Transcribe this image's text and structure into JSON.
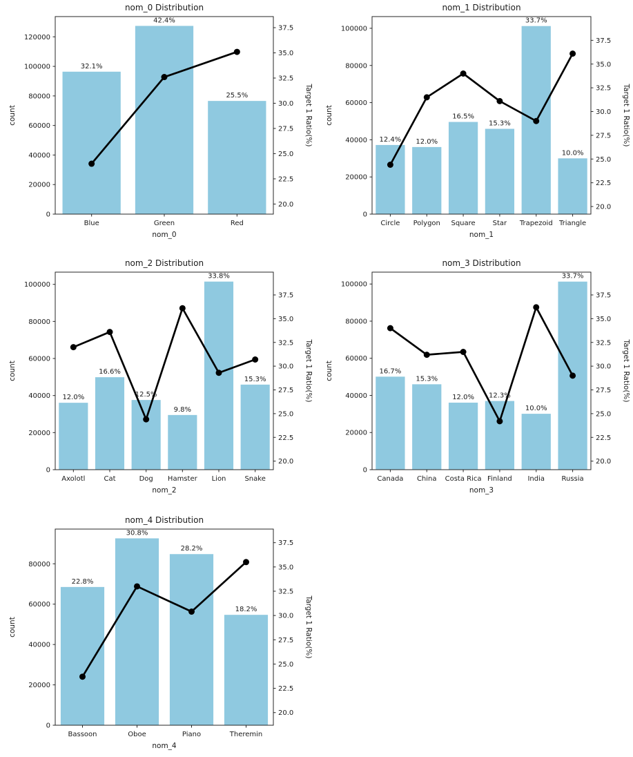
{
  "figure": {
    "background": "#ffffff",
    "bar_color": "#8fc9e0",
    "line_color": "#000000",
    "text_color": "#1a1a1a",
    "spine_color": "#262626"
  },
  "chart_data": [
    {
      "type": "bar+line",
      "title": "nom_0 Distribution",
      "xlabel": "nom_0",
      "ylabel_left": "count",
      "ylabel_right": "Target 1 Ratio(%)",
      "categories": [
        "Blue",
        "Green",
        "Red"
      ],
      "series": [
        {
          "name": "count",
          "type": "bar",
          "axis": "left",
          "values": [
            96400,
            127400,
            76600
          ],
          "labels": [
            "32.1%",
            "42.4%",
            "25.5%"
          ]
        },
        {
          "name": "Target 1 Ratio(%)",
          "type": "line",
          "axis": "right",
          "values": [
            24.0,
            32.6,
            35.1
          ]
        }
      ],
      "ylim_left": [
        0,
        133700
      ],
      "yticks_left": [
        0,
        20000,
        40000,
        60000,
        80000,
        100000,
        120000
      ],
      "ylim_right": [
        19.0,
        38.6
      ],
      "yticks_right": [
        20.0,
        22.5,
        25.0,
        27.5,
        30.0,
        32.5,
        35.0,
        37.5
      ],
      "grid": false,
      "legend": null
    },
    {
      "type": "bar+line",
      "title": "nom_1 Distribution",
      "xlabel": "nom_1",
      "ylabel_left": "count",
      "ylabel_right": "Target 1 Ratio(%)",
      "categories": [
        "Circle",
        "Polygon",
        "Square",
        "Star",
        "Trapezoid",
        "Triangle"
      ],
      "series": [
        {
          "name": "count",
          "type": "bar",
          "axis": "left",
          "values": [
            37200,
            36100,
            49600,
            45900,
            101200,
            30000
          ],
          "labels": [
            "12.4%",
            "12.0%",
            "16.5%",
            "15.3%",
            "33.7%",
            "10.0%"
          ]
        },
        {
          "name": "Target 1 Ratio(%)",
          "type": "line",
          "axis": "right",
          "values": [
            24.4,
            31.5,
            34.0,
            31.1,
            29.0,
            36.1
          ]
        }
      ],
      "ylim_left": [
        0,
        106300
      ],
      "yticks_left": [
        0,
        20000,
        40000,
        60000,
        80000,
        100000
      ],
      "ylim_right": [
        19.2,
        40.0
      ],
      "yticks_right": [
        20.0,
        22.5,
        25.0,
        27.5,
        30.0,
        32.5,
        35.0,
        37.5
      ],
      "grid": false,
      "legend": null
    },
    {
      "type": "bar+line",
      "title": "nom_2 Distribution",
      "xlabel": "nom_2",
      "ylabel_left": "count",
      "ylabel_right": "Target 1 Ratio(%)",
      "categories": [
        "Axolotl",
        "Cat",
        "Dog",
        "Hamster",
        "Lion",
        "Snake"
      ],
      "series": [
        {
          "name": "count",
          "type": "bar",
          "axis": "left",
          "values": [
            36100,
            49900,
            37600,
            29500,
            101500,
            45900
          ],
          "labels": [
            "12.0%",
            "16.6%",
            "12.5%",
            "9.8%",
            "33.8%",
            "15.3%"
          ]
        },
        {
          "name": "Target 1 Ratio(%)",
          "type": "line",
          "axis": "right",
          "values": [
            32.0,
            33.6,
            24.4,
            36.1,
            29.3,
            30.7
          ]
        }
      ],
      "ylim_left": [
        0,
        106600
      ],
      "yticks_left": [
        0,
        20000,
        40000,
        60000,
        80000,
        100000
      ],
      "ylim_right": [
        19.1,
        39.9
      ],
      "yticks_right": [
        20.0,
        22.5,
        25.0,
        27.5,
        30.0,
        32.5,
        35.0,
        37.5
      ],
      "grid": false,
      "legend": null
    },
    {
      "type": "bar+line",
      "title": "nom_3 Distribution",
      "xlabel": "nom_3",
      "ylabel_left": "count",
      "ylabel_right": "Target 1 Ratio(%)",
      "categories": [
        "Canada",
        "China",
        "Costa Rica",
        "Finland",
        "India",
        "Russia"
      ],
      "series": [
        {
          "name": "count",
          "type": "bar",
          "axis": "left",
          "values": [
            50100,
            46000,
            36100,
            37000,
            30100,
            101300
          ],
          "labels": [
            "16.7%",
            "15.3%",
            "12.0%",
            "12.3%",
            "10.0%",
            "33.7%"
          ]
        },
        {
          "name": "Target 1 Ratio(%)",
          "type": "line",
          "axis": "right",
          "values": [
            34.0,
            31.2,
            31.5,
            24.2,
            36.2,
            29.0
          ]
        }
      ],
      "ylim_left": [
        0,
        106400
      ],
      "yticks_left": [
        0,
        20000,
        40000,
        60000,
        80000,
        100000
      ],
      "ylim_right": [
        19.1,
        39.9
      ],
      "yticks_right": [
        20.0,
        22.5,
        25.0,
        27.5,
        30.0,
        32.5,
        35.0,
        37.5
      ],
      "grid": false,
      "legend": null
    },
    {
      "type": "bar+line",
      "title": "nom_4 Distribution",
      "xlabel": "nom_4",
      "ylabel_left": "count",
      "ylabel_right": "Target 1 Ratio(%)",
      "categories": [
        "Bassoon",
        "Oboe",
        "Piano",
        "Theremin"
      ],
      "series": [
        {
          "name": "count",
          "type": "bar",
          "axis": "left",
          "values": [
            68500,
            92600,
            84800,
            54700
          ],
          "labels": [
            "22.8%",
            "30.8%",
            "28.2%",
            "18.2%"
          ]
        },
        {
          "name": "Target 1 Ratio(%)",
          "type": "line",
          "axis": "right",
          "values": [
            23.7,
            33.0,
            30.4,
            35.5
          ]
        }
      ],
      "ylim_left": [
        0,
        97200
      ],
      "yticks_left": [
        0,
        20000,
        40000,
        60000,
        80000
      ],
      "ylim_right": [
        18.7,
        38.9
      ],
      "yticks_right": [
        20.0,
        22.5,
        25.0,
        27.5,
        30.0,
        32.5,
        35.0,
        37.5
      ],
      "grid": false,
      "legend": null
    }
  ]
}
